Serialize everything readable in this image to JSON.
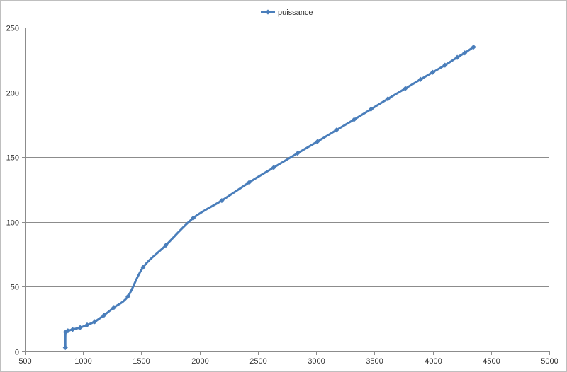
{
  "chart_data": {
    "type": "line",
    "legend": {
      "position": "top-center"
    },
    "series": [
      {
        "name": "puissance",
        "color": "#4a7ebb",
        "marker": "diamond",
        "smooth": true,
        "x": [
          848,
          850,
          870,
          910,
          975,
          1035,
          1100,
          1180,
          1265,
          1385,
          1515,
          1710,
          1945,
          2190,
          2425,
          2635,
          2840,
          3010,
          3175,
          3325,
          3470,
          3615,
          3765,
          3895,
          4000,
          4105,
          4210,
          4275,
          4350
        ],
        "y": [
          3,
          15,
          16,
          17,
          18.5,
          20.5,
          23,
          28,
          34,
          42.5,
          65,
          82,
          103,
          116.5,
          130.5,
          142,
          153,
          162,
          171,
          179,
          187,
          195,
          203,
          210,
          215.5,
          221,
          227,
          230.5,
          235
        ]
      }
    ],
    "xlim": [
      500,
      5000
    ],
    "ylim": [
      0,
      250
    ],
    "xticks": [
      "500",
      "1000",
      "1500",
      "2000",
      "2500",
      "3000",
      "3500",
      "4000",
      "4500",
      "5000"
    ],
    "yticks": [
      "0",
      "50",
      "100",
      "150",
      "200",
      "250"
    ],
    "grid": {
      "horizontal": true,
      "vertical": false
    },
    "title": "",
    "xlabel": "",
    "ylabel": ""
  }
}
